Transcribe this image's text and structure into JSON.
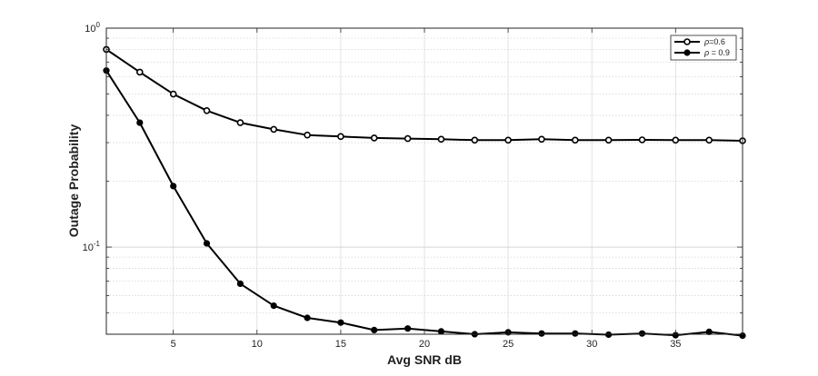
{
  "chart_data": {
    "type": "line",
    "xlabel": "Avg SNR dB",
    "ylabel": "Outage Probability",
    "xlim": [
      1,
      39
    ],
    "ylim": [
      0.04,
      1
    ],
    "yscale": "log",
    "grid": true,
    "legend_position": "top-right",
    "x_ticks": [
      "5",
      "10",
      "15",
      "20",
      "25",
      "30",
      "35"
    ],
    "y_tick_labels": [
      {
        "base": "10",
        "exp": "0",
        "value": 1
      },
      {
        "base": "10",
        "exp": "-1",
        "value": 0.1
      }
    ],
    "x": [
      1,
      3,
      5,
      7,
      9,
      11,
      13,
      15,
      17,
      19,
      21,
      23,
      25,
      27,
      29,
      31,
      33,
      35,
      37,
      39
    ],
    "series": [
      {
        "name_symbol": "ρ",
        "name_value": "=0.6",
        "marker": "open-circle",
        "color": "#000000",
        "values": [
          0.8,
          0.63,
          0.5,
          0.42,
          0.37,
          0.345,
          0.325,
          0.32,
          0.315,
          0.313,
          0.311,
          0.308,
          0.308,
          0.311,
          0.308,
          0.308,
          0.309,
          0.308,
          0.308,
          0.306
        ]
      },
      {
        "name_symbol": "ρ",
        "name_value": " = 0.9",
        "marker": "filled-circle",
        "color": "#000000",
        "values": [
          0.64,
          0.37,
          0.19,
          0.104,
          0.068,
          0.054,
          0.0475,
          0.0452,
          0.0418,
          0.0425,
          0.0412,
          0.04,
          0.0408,
          0.0403,
          0.0403,
          0.0398,
          0.0403,
          0.0396,
          0.041,
          0.0394
        ]
      }
    ]
  }
}
